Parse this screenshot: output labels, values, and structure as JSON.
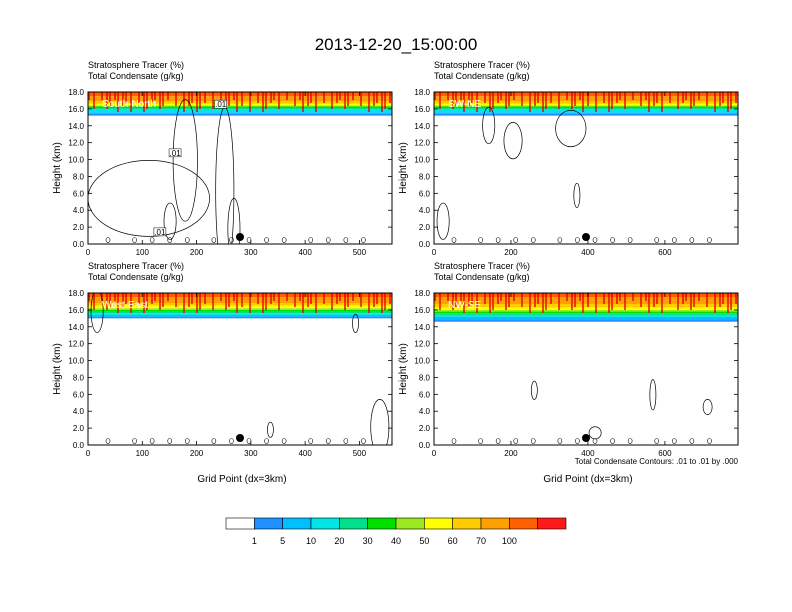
{
  "figure": {
    "title": "2013-12-20_15:00:00",
    "subtitle_tracer": "Stratosphere Tracer   (%)",
    "subtitle_condensate": "Total Condensate   (g/kg)",
    "contour_note": "Total Condensate Contours: .01 to .01 by .000"
  },
  "colors": {
    "levels": [
      "#ffffff",
      "#1e90ff",
      "#00bfff",
      "#00e5e5",
      "#00e08a",
      "#00e000",
      "#9ae81e",
      "#ffff00",
      "#ffcc00",
      "#ffa000",
      "#ff6000",
      "#ff1a1a"
    ],
    "colorbar_labels": [
      "1",
      "5",
      "10",
      "20",
      "30",
      "40",
      "50",
      "60",
      "70",
      "100"
    ]
  },
  "chart_data": [
    {
      "type": "heatmap",
      "panel": "South-North",
      "region_label": "South-North",
      "xlabel": "",
      "ylabel": "Height (km)",
      "xlim": [
        0,
        560
      ],
      "ylim": [
        0,
        18
      ],
      "xticks": [
        "0",
        "100",
        "200",
        "300",
        "400",
        "500"
      ],
      "yticks": [
        "0.0",
        "2.0",
        "4.0",
        "6.0",
        "8.0",
        "10.0",
        "12.0",
        "14.0",
        "16.0",
        "18.0"
      ],
      "contour_labels": [
        ".01",
        ".01",
        ".01"
      ],
      "marker_x": 280,
      "tracer_profile_km": {
        "1": 15.2,
        "5": 15.4,
        "10": 15.6,
        "20": 15.9,
        "30": 16.1,
        "40": 16.3,
        "50": 16.4,
        "60": 16.6,
        "70": 16.9,
        "100": 17.5
      }
    },
    {
      "type": "heatmap",
      "panel": "SW-NE",
      "region_label": "SW-NE",
      "xlabel": "",
      "ylabel": "Height (km)",
      "xlim": [
        0,
        790
      ],
      "ylim": [
        0,
        18
      ],
      "xticks": [
        "0",
        "200",
        "400",
        "600"
      ],
      "yticks": [
        "0.0",
        "2.0",
        "4.0",
        "6.0",
        "8.0",
        "10.0",
        "12.0",
        "14.0",
        "16.0",
        "18.0"
      ],
      "marker_x": 395,
      "tracer_profile_km": {
        "1": 15.2,
        "5": 15.4,
        "10": 15.6,
        "20": 15.9,
        "30": 16.1,
        "40": 16.3,
        "50": 16.4,
        "60": 16.6,
        "70": 16.9,
        "100": 17.5
      }
    },
    {
      "type": "heatmap",
      "panel": "West-East",
      "region_label": "West-East",
      "xlabel": "Grid Point (dx=3km)",
      "ylabel": "Height (km)",
      "xlim": [
        0,
        560
      ],
      "ylim": [
        0,
        18
      ],
      "xticks": [
        "0",
        "100",
        "200",
        "300",
        "400",
        "500"
      ],
      "yticks": [
        "0.0",
        "2.0",
        "4.0",
        "6.0",
        "8.0",
        "10.0",
        "12.0",
        "14.0",
        "16.0",
        "18.0"
      ],
      "marker_x": 280,
      "tracer_profile_km": {
        "1": 15.0,
        "5": 15.2,
        "10": 15.4,
        "20": 15.6,
        "30": 15.8,
        "40": 16.0,
        "50": 16.2,
        "60": 16.5,
        "70": 16.8,
        "100": 17.5
      }
    },
    {
      "type": "heatmap",
      "panel": "NW-SE",
      "region_label": "NW-SE",
      "xlabel": "Grid Point (dx=3km)",
      "ylabel": "Height (km)",
      "xlim": [
        0,
        790
      ],
      "ylim": [
        0,
        18
      ],
      "xticks": [
        "0",
        "200",
        "400",
        "600"
      ],
      "yticks": [
        "0.0",
        "2.0",
        "4.0",
        "6.0",
        "8.0",
        "10.0",
        "12.0",
        "14.0",
        "16.0",
        "18.0"
      ],
      "marker_x": 395,
      "tracer_profile_km": {
        "1": 14.6,
        "5": 14.9,
        "10": 15.2,
        "20": 15.4,
        "30": 15.6,
        "40": 15.8,
        "50": 16.0,
        "60": 16.3,
        "70": 16.7,
        "100": 17.5
      }
    }
  ]
}
